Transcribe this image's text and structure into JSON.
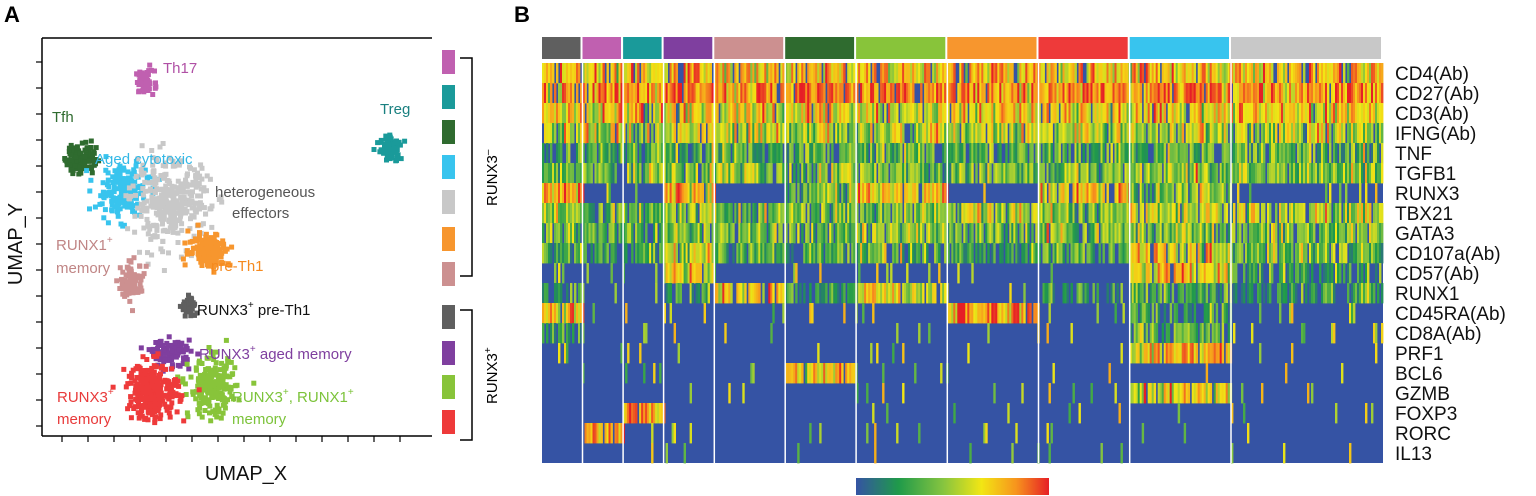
{
  "panel_labels": {
    "a": "A",
    "b": "B"
  },
  "colors": {
    "Th17": "#c060b0",
    "Treg": "#1a9a9a",
    "Tfh": "#2f6b2f",
    "Aged cytotoxic": "#38c4ee",
    "heterogeneous effectors": "#c8c8c8",
    "pre-Th1": "#f7962e",
    "RUNX1+ memory": "#cc9090",
    "RUNX3+ pre-Th1": "#5f5f5f",
    "RUNX3+ aged memory": "#7f3f9f",
    "RUNX3+, RUNX1+ memory": "#88c43a",
    "RUNX3+ memory": "#ee3a3a",
    "Treg_label": "#1a8080",
    "heterogeneous_label": "#555555",
    "runx1_label": "#c08585"
  },
  "umap": {
    "xlabel": "UMAP_X",
    "ylabel": "UMAP_Y",
    "labels": {
      "th17": "Th17",
      "treg": "Treg",
      "tfh": "Tfh",
      "aged_cytotoxic": "Aged cytotoxic",
      "hetero_1": "heterogeneous",
      "hetero_2": "effectors",
      "runx1_main": "RUNX1",
      "runx1_sup": "+",
      "runx1_line2": "memory",
      "pre_th1": "pre-Th1",
      "r3_pre_a": "RUNX3",
      "r3_pre_sup": "+",
      "r3_pre_b": " pre-Th1",
      "r3_aged_a": "RUNX3",
      "r3_aged_sup": "+",
      "r3_aged_b": " aged memory",
      "r3mem_a": "RUNX3",
      "r3mem_sup": "+",
      "r3mem_line2": "memory",
      "r3r1_a": "RUNX3",
      "r3r1_sup1": "+",
      "r3r1_b": ", RUNX1",
      "r3r1_sup2": "+",
      "r3r1_line2": "memory"
    }
  },
  "bracket": {
    "minus_main": "RUNX3",
    "minus_sup": "–",
    "plus_main": "RUNX3",
    "plus_sup": "+",
    "swatches": [
      "Th17",
      "Treg",
      "Tfh",
      "Aged cytotoxic",
      "heterogeneous effectors",
      "pre-Th1",
      "RUNX1+ memory",
      "RUNX3+ pre-Th1",
      "RUNX3+ aged memory",
      "RUNX3+, RUNX1+ memory",
      "RUNX3+ memory"
    ]
  },
  "chart_data": [
    {
      "type": "scatter",
      "title": "",
      "xlabel": "UMAP_X",
      "ylabel": "UMAP_Y",
      "clusters": [
        {
          "name": "Th17",
          "center": [
            3.0,
            9.4
          ],
          "spread": [
            0.18,
            0.2
          ],
          "n": 70
        },
        {
          "name": "Treg",
          "center": [
            12.5,
            7.1
          ],
          "spread": [
            0.2,
            0.22
          ],
          "n": 70
        },
        {
          "name": "Tfh",
          "center": [
            0.5,
            6.8
          ],
          "spread": [
            0.3,
            0.28
          ],
          "n": 110
        },
        {
          "name": "Aged cytotoxic",
          "center": [
            2.1,
            5.6
          ],
          "spread": [
            0.5,
            0.45
          ],
          "n": 180
        },
        {
          "name": "heterogeneous effectors",
          "center": [
            4.0,
            5.2
          ],
          "spread": [
            0.75,
            0.7
          ],
          "n": 340
        },
        {
          "name": "pre-Th1",
          "center": [
            5.5,
            3.6
          ],
          "spread": [
            0.4,
            0.3
          ],
          "n": 150
        },
        {
          "name": "RUNX1+ memory",
          "center": [
            2.5,
            2.5
          ],
          "spread": [
            0.22,
            0.3
          ],
          "n": 100
        },
        {
          "name": "RUNX3+ pre-Th1",
          "center": [
            4.7,
            1.6
          ],
          "spread": [
            0.14,
            0.2
          ],
          "n": 50
        },
        {
          "name": "RUNX3+ aged memory",
          "center": [
            4.0,
            0.0
          ],
          "spread": [
            0.38,
            0.22
          ],
          "n": 110
        },
        {
          "name": "RUNX3+, RUNX1+ memory",
          "center": [
            5.6,
            -1.2
          ],
          "spread": [
            0.45,
            0.5
          ],
          "n": 220
        },
        {
          "name": "RUNX3+ memory",
          "center": [
            3.3,
            -1.3
          ],
          "spread": [
            0.5,
            0.5
          ],
          "n": 250
        }
      ],
      "xlim": [
        -0.5,
        13.8
      ],
      "ylim": [
        -2.6,
        10.5
      ]
    },
    {
      "type": "heatmap",
      "genes": [
        "CD4(Ab)",
        "CD27(Ab)",
        "CD3(Ab)",
        "IFNG(Ab)",
        "TNF",
        "TGFB1",
        "RUNX3",
        "TBX21",
        "GATA3",
        "CD107a(Ab)",
        "CD57(Ab)",
        "RUNX1",
        "CD45RA(Ab)",
        "CD8A(Ab)",
        "PRF1",
        "BCL6",
        "GZMB",
        "FOXP3",
        "RORC",
        "IL13"
      ],
      "clusters": [
        {
          "name": "RUNX3+ pre-Th1",
          "weight": 2,
          "mean": [
            0.68,
            0.82,
            0.62,
            0.5,
            0.2,
            0.35,
            0.75,
            0.4,
            0.35,
            0.25,
            0.1,
            0.15,
            0.7,
            0.2,
            0.05,
            0.05,
            0.05,
            0.05,
            0.05,
            0.04
          ]
        },
        {
          "name": "Th17",
          "weight": 2,
          "mean": [
            0.7,
            0.83,
            0.62,
            0.48,
            0.28,
            0.35,
            0.08,
            0.35,
            0.3,
            0.2,
            0.05,
            0.12,
            0.05,
            0.05,
            0.04,
            0.04,
            0.04,
            0.05,
            0.72,
            0.04
          ]
        },
        {
          "name": "Treg",
          "weight": 2,
          "mean": [
            0.7,
            0.82,
            0.62,
            0.45,
            0.25,
            0.42,
            0.08,
            0.35,
            0.3,
            0.2,
            0.08,
            0.12,
            0.1,
            0.05,
            0.04,
            0.04,
            0.04,
            0.75,
            0.08,
            0.04
          ]
        },
        {
          "name": "RUNX3+ aged memory",
          "weight": 2.5,
          "mean": [
            0.68,
            0.82,
            0.6,
            0.48,
            0.3,
            0.38,
            0.72,
            0.45,
            0.38,
            0.5,
            0.62,
            0.15,
            0.07,
            0.08,
            0.05,
            0.05,
            0.08,
            0.04,
            0.04,
            0.04
          ]
        },
        {
          "name": "RUNX1+ memory",
          "weight": 3.5,
          "mean": [
            0.66,
            0.8,
            0.6,
            0.5,
            0.3,
            0.4,
            0.03,
            0.35,
            0.38,
            0.3,
            0.05,
            0.68,
            0.05,
            0.05,
            0.03,
            0.04,
            0.04,
            0.04,
            0.04,
            0.03
          ]
        },
        {
          "name": "Tfh",
          "weight": 3.5,
          "mean": [
            0.68,
            0.82,
            0.62,
            0.48,
            0.3,
            0.38,
            0.35,
            0.4,
            0.35,
            0.2,
            0.08,
            0.2,
            0.06,
            0.05,
            0.04,
            0.68,
            0.05,
            0.04,
            0.04,
            0.04
          ]
        },
        {
          "name": "RUNX3+, RUNX1+ memory",
          "weight": 4.5,
          "mean": [
            0.66,
            0.82,
            0.62,
            0.5,
            0.28,
            0.38,
            0.72,
            0.42,
            0.4,
            0.3,
            0.12,
            0.6,
            0.08,
            0.08,
            0.04,
            0.04,
            0.05,
            0.04,
            0.04,
            0.03
          ]
        },
        {
          "name": "pre-Th1",
          "weight": 4.5,
          "mean": [
            0.7,
            0.85,
            0.62,
            0.52,
            0.3,
            0.35,
            0.06,
            0.45,
            0.3,
            0.2,
            0.05,
            0.12,
            0.78,
            0.05,
            0.04,
            0.04,
            0.04,
            0.04,
            0.04,
            0.04
          ]
        },
        {
          "name": "RUNX3+ memory",
          "weight": 4.5,
          "mean": [
            0.66,
            0.8,
            0.62,
            0.5,
            0.3,
            0.38,
            0.7,
            0.4,
            0.38,
            0.3,
            0.1,
            0.15,
            0.1,
            0.1,
            0.04,
            0.04,
            0.05,
            0.04,
            0.04,
            0.03
          ]
        },
        {
          "name": "Aged cytotoxic",
          "weight": 5,
          "mean": [
            0.7,
            0.8,
            0.62,
            0.5,
            0.3,
            0.38,
            0.4,
            0.52,
            0.38,
            0.58,
            0.62,
            0.2,
            0.18,
            0.3,
            0.72,
            0.06,
            0.62,
            0.04,
            0.04,
            0.04
          ]
        },
        {
          "name": "heterogeneous effectors",
          "weight": 7.5,
          "mean": [
            0.7,
            0.78,
            0.62,
            0.5,
            0.3,
            0.38,
            0.12,
            0.45,
            0.38,
            0.35,
            0.18,
            0.2,
            0.12,
            0.12,
            0.12,
            0.05,
            0.1,
            0.04,
            0.05,
            0.06
          ]
        }
      ],
      "colorscale": [
        "#3553a4",
        "#1f9a4a",
        "#85c440",
        "#f2e614",
        "#f7941d",
        "#e61f26"
      ],
      "range": [
        0,
        1
      ]
    }
  ]
}
